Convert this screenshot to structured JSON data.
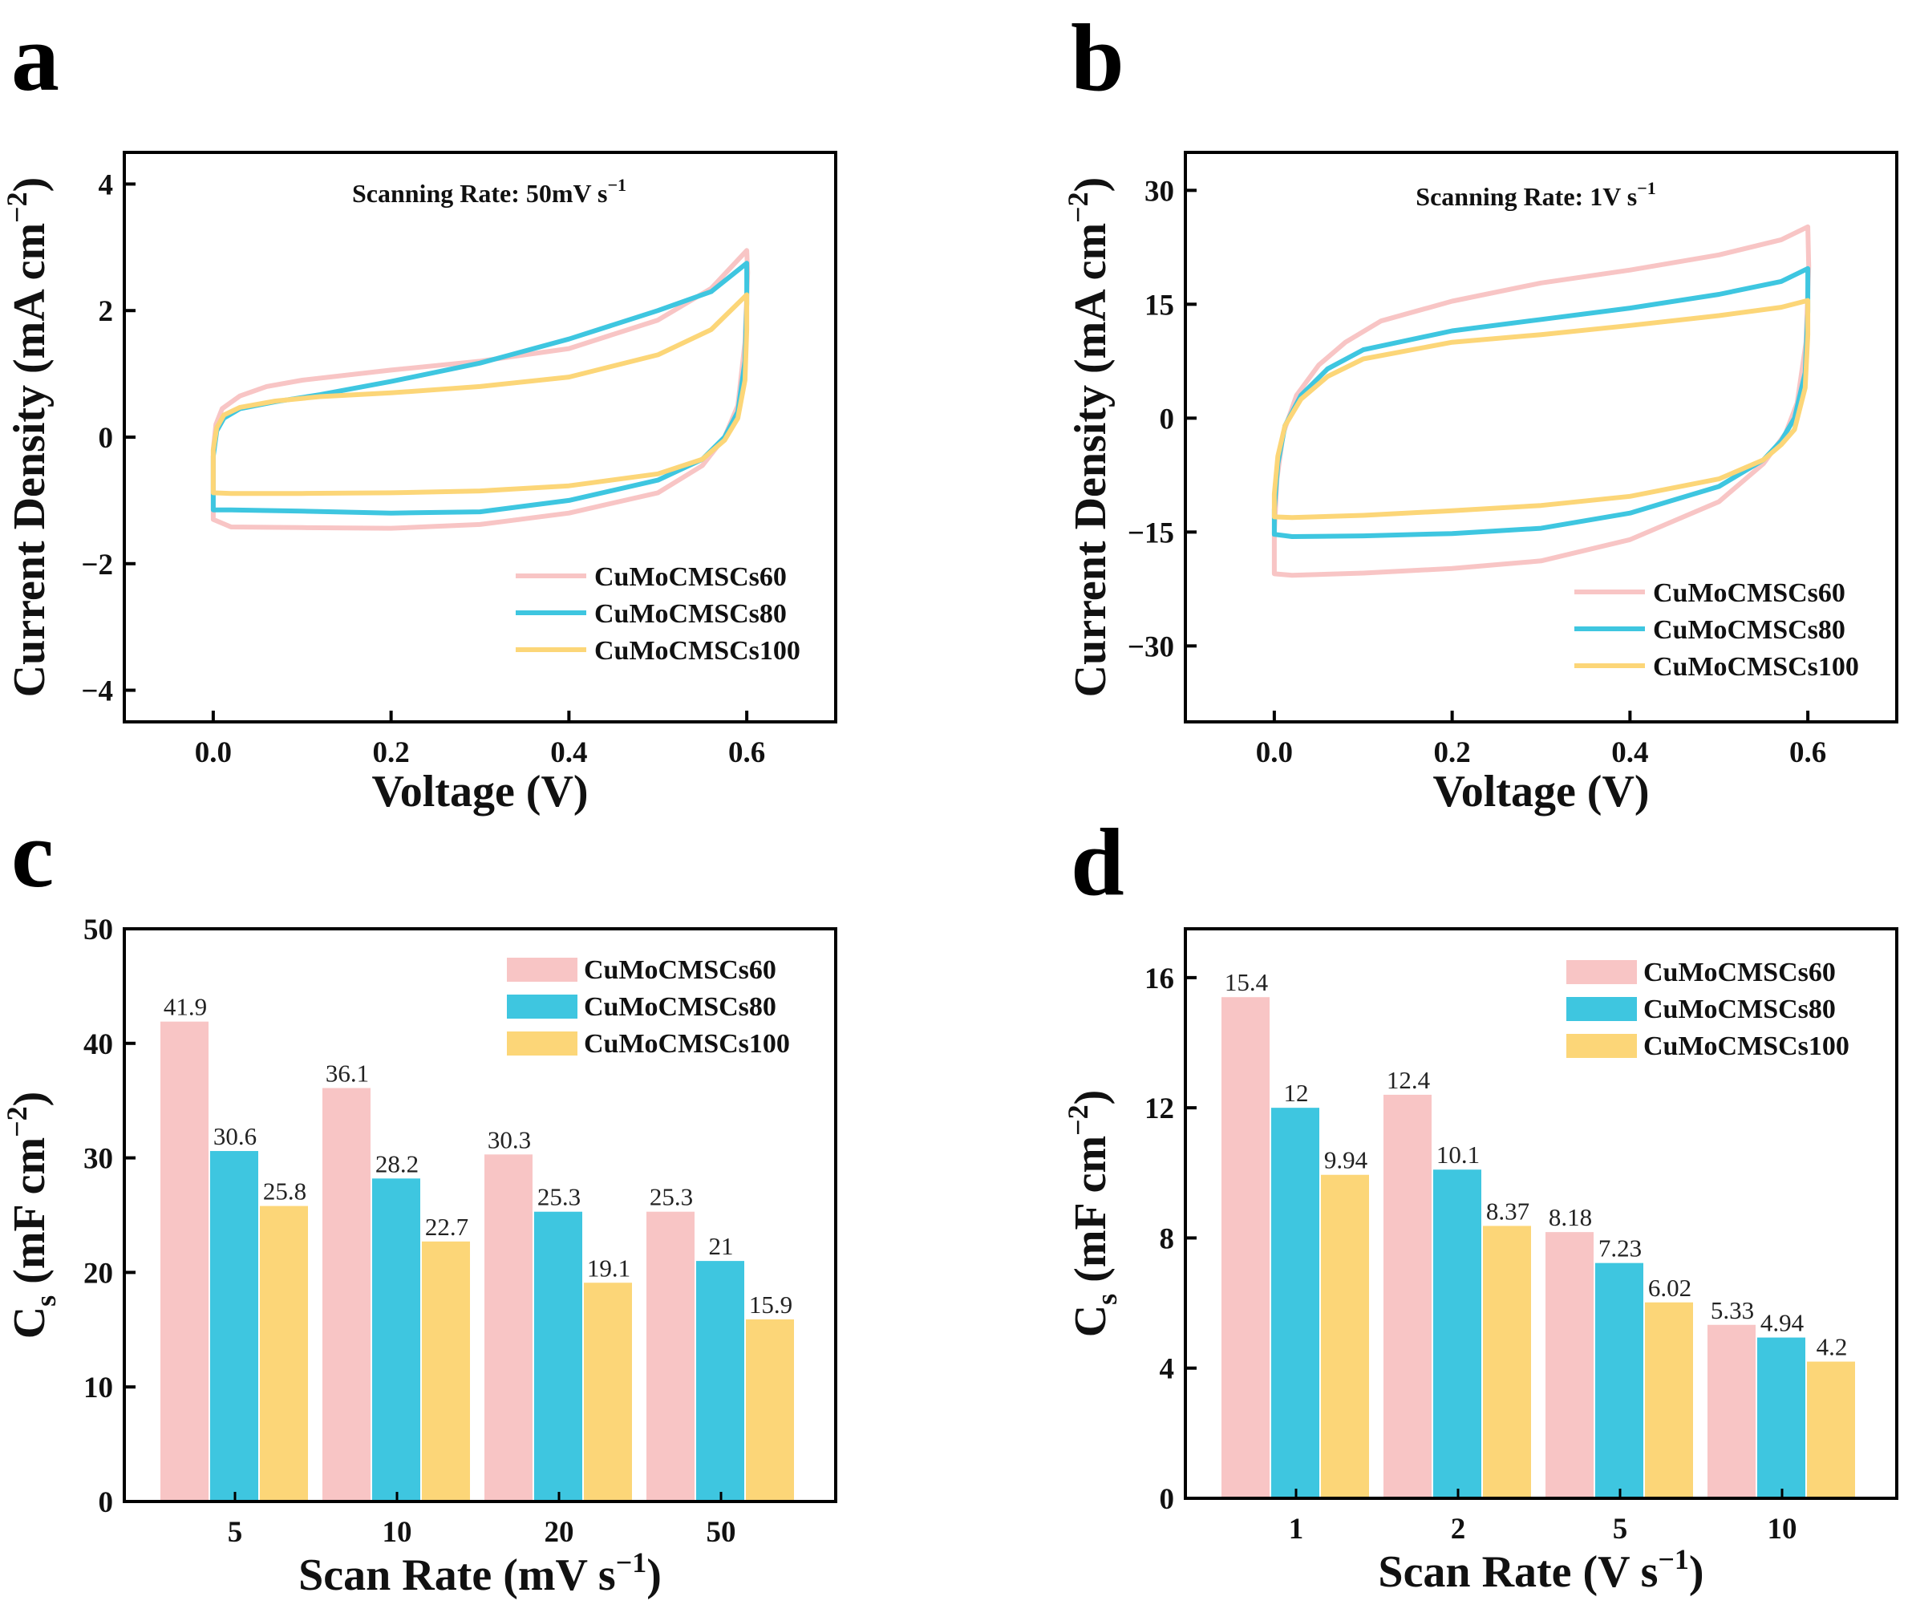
{
  "panels": {
    "a": "a",
    "b": "b",
    "c": "c",
    "d": "d"
  },
  "colors": {
    "s60": "#f8c5c5",
    "s80": "#3ec6e0",
    "s100": "#fcd678"
  },
  "chart_data": [
    {
      "id": "a",
      "type": "line",
      "title": "",
      "annotation": {
        "main": "Scanning Rate: 50mV s",
        "sup": "−1"
      },
      "xlabel": "Voltage (V)",
      "ylabel": "Current Density (mA cm",
      "ylabel_sup": "−2",
      "ylabel_end": ")",
      "xlim": [
        -0.1,
        0.7
      ],
      "ylim": [
        -4.5,
        4.5
      ],
      "xticks": [
        0.0,
        0.2,
        0.4,
        0.6
      ],
      "xtick_labels": [
        "0.0",
        "0.2",
        "0.4",
        "0.6"
      ],
      "yticks": [
        -4,
        -2,
        0,
        2,
        4
      ],
      "ytick_labels": [
        "−4",
        "−2",
        "0",
        "2",
        "4"
      ],
      "legend": [
        "CuMoCMSCs60",
        "CuMoCMSCs80",
        "CuMoCMSCs100"
      ],
      "series": [
        {
          "name": "CuMoCMSCs60",
          "color_key": "s60",
          "points": [
            [
              0,
              -1.3
            ],
            [
              0,
              -0.2
            ],
            [
              0.003,
              0.2
            ],
            [
              0.01,
              0.45
            ],
            [
              0.03,
              0.65
            ],
            [
              0.06,
              0.8
            ],
            [
              0.1,
              0.9
            ],
            [
              0.2,
              1.06
            ],
            [
              0.3,
              1.2
            ],
            [
              0.4,
              1.4
            ],
            [
              0.5,
              1.85
            ],
            [
              0.56,
              2.35
            ],
            [
              0.6,
              2.95
            ],
            [
              0.601,
              2.6
            ],
            [
              0.598,
              1.5
            ],
            [
              0.59,
              0.5
            ],
            [
              0.575,
              0
            ],
            [
              0.55,
              -0.45
            ],
            [
              0.5,
              -0.88
            ],
            [
              0.4,
              -1.2
            ],
            [
              0.3,
              -1.38
            ],
            [
              0.2,
              -1.44
            ],
            [
              0.1,
              -1.43
            ],
            [
              0.02,
              -1.42
            ],
            [
              0,
              -1.3
            ]
          ]
        },
        {
          "name": "CuMoCMSCs80",
          "color_key": "s80",
          "points": [
            [
              0,
              -1.15
            ],
            [
              0,
              -0.3
            ],
            [
              0.004,
              0.1
            ],
            [
              0.012,
              0.3
            ],
            [
              0.03,
              0.45
            ],
            [
              0.07,
              0.56
            ],
            [
              0.12,
              0.67
            ],
            [
              0.2,
              0.88
            ],
            [
              0.3,
              1.17
            ],
            [
              0.4,
              1.55
            ],
            [
              0.5,
              2.0
            ],
            [
              0.56,
              2.3
            ],
            [
              0.6,
              2.75
            ],
            [
              0.6,
              2.1
            ],
            [
              0.598,
              1.2
            ],
            [
              0.59,
              0.4
            ],
            [
              0.575,
              0
            ],
            [
              0.55,
              -0.35
            ],
            [
              0.5,
              -0.68
            ],
            [
              0.4,
              -1.0
            ],
            [
              0.3,
              -1.18
            ],
            [
              0.2,
              -1.2
            ],
            [
              0.1,
              -1.17
            ],
            [
              0.02,
              -1.15
            ],
            [
              0,
              -1.15
            ]
          ]
        },
        {
          "name": "CuMoCMSCs100",
          "color_key": "s100",
          "points": [
            [
              0,
              -0.88
            ],
            [
              0,
              -0.2
            ],
            [
              0.004,
              0.15
            ],
            [
              0.012,
              0.35
            ],
            [
              0.03,
              0.47
            ],
            [
              0.07,
              0.57
            ],
            [
              0.12,
              0.64
            ],
            [
              0.2,
              0.7
            ],
            [
              0.3,
              0.8
            ],
            [
              0.4,
              0.95
            ],
            [
              0.5,
              1.3
            ],
            [
              0.56,
              1.7
            ],
            [
              0.6,
              2.25
            ],
            [
              0.6,
              1.7
            ],
            [
              0.598,
              0.9
            ],
            [
              0.59,
              0.3
            ],
            [
              0.575,
              -0.05
            ],
            [
              0.55,
              -0.35
            ],
            [
              0.5,
              -0.58
            ],
            [
              0.4,
              -0.77
            ],
            [
              0.3,
              -0.85
            ],
            [
              0.2,
              -0.88
            ],
            [
              0.1,
              -0.89
            ],
            [
              0.02,
              -0.89
            ],
            [
              0,
              -0.88
            ]
          ]
        }
      ]
    },
    {
      "id": "b",
      "type": "line",
      "title": "",
      "annotation": {
        "main": "Scanning Rate: 1V s",
        "sup": "−1"
      },
      "xlabel": "Voltage (V)",
      "ylabel": "Current Density (mA cm",
      "ylabel_sup": "−2",
      "ylabel_end": ")",
      "xlim": [
        -0.1,
        0.7
      ],
      "ylim": [
        -40,
        35
      ],
      "xticks": [
        0.0,
        0.2,
        0.4,
        0.6
      ],
      "xtick_labels": [
        "0.0",
        "0.2",
        "0.4",
        "0.6"
      ],
      "yticks": [
        -30,
        -15,
        0,
        15,
        30
      ],
      "ytick_labels": [
        "−30",
        "−15",
        "0",
        "15",
        "30"
      ],
      "legend": [
        "CuMoCMSCs60",
        "CuMoCMSCs80",
        "CuMoCMSCs100"
      ],
      "series": [
        {
          "name": "CuMoCMSCs60",
          "color_key": "s60",
          "points": [
            [
              0,
              -20.5
            ],
            [
              0,
              -15
            ],
            [
              0.003,
              -8
            ],
            [
              0.01,
              -2
            ],
            [
              0.025,
              3
            ],
            [
              0.05,
              7
            ],
            [
              0.08,
              10
            ],
            [
              0.12,
              12.8
            ],
            [
              0.2,
              15.4
            ],
            [
              0.3,
              17.8
            ],
            [
              0.4,
              19.5
            ],
            [
              0.5,
              21.5
            ],
            [
              0.57,
              23.5
            ],
            [
              0.6,
              25.2
            ],
            [
              0.601,
              20
            ],
            [
              0.598,
              10
            ],
            [
              0.588,
              2
            ],
            [
              0.575,
              -2
            ],
            [
              0.55,
              -6
            ],
            [
              0.5,
              -11
            ],
            [
              0.4,
              -16
            ],
            [
              0.3,
              -18.8
            ],
            [
              0.2,
              -19.8
            ],
            [
              0.1,
              -20.4
            ],
            [
              0.02,
              -20.7
            ],
            [
              0,
              -20.5
            ]
          ]
        },
        {
          "name": "CuMoCMSCs80",
          "color_key": "s80",
          "points": [
            [
              0,
              -15.3
            ],
            [
              0,
              -12
            ],
            [
              0.004,
              -6
            ],
            [
              0.012,
              -1
            ],
            [
              0.03,
              3
            ],
            [
              0.06,
              6.5
            ],
            [
              0.1,
              9
            ],
            [
              0.2,
              11.5
            ],
            [
              0.3,
              13
            ],
            [
              0.4,
              14.5
            ],
            [
              0.5,
              16.3
            ],
            [
              0.57,
              18
            ],
            [
              0.6,
              19.7
            ],
            [
              0.6,
              14
            ],
            [
              0.597,
              6
            ],
            [
              0.585,
              0
            ],
            [
              0.57,
              -3
            ],
            [
              0.55,
              -5.5
            ],
            [
              0.5,
              -9
            ],
            [
              0.4,
              -12.5
            ],
            [
              0.3,
              -14.5
            ],
            [
              0.2,
              -15.2
            ],
            [
              0.1,
              -15.5
            ],
            [
              0.02,
              -15.6
            ],
            [
              0,
              -15.3
            ]
          ]
        },
        {
          "name": "CuMoCMSCs100",
          "color_key": "s100",
          "points": [
            [
              0,
              -13
            ],
            [
              0,
              -10
            ],
            [
              0.004,
              -5
            ],
            [
              0.012,
              -1
            ],
            [
              0.03,
              2.5
            ],
            [
              0.06,
              5.5
            ],
            [
              0.1,
              7.8
            ],
            [
              0.2,
              10
            ],
            [
              0.3,
              11
            ],
            [
              0.4,
              12.2
            ],
            [
              0.5,
              13.5
            ],
            [
              0.57,
              14.6
            ],
            [
              0.6,
              15.5
            ],
            [
              0.6,
              11
            ],
            [
              0.597,
              4
            ],
            [
              0.585,
              -1.5
            ],
            [
              0.57,
              -3.5
            ],
            [
              0.55,
              -5.5
            ],
            [
              0.5,
              -8
            ],
            [
              0.4,
              -10.3
            ],
            [
              0.3,
              -11.5
            ],
            [
              0.2,
              -12.2
            ],
            [
              0.1,
              -12.8
            ],
            [
              0.02,
              -13.1
            ],
            [
              0,
              -13
            ]
          ]
        }
      ]
    },
    {
      "id": "c",
      "type": "bar",
      "title": "",
      "xlabel": "Scan Rate (mV s",
      "xlabel_sup": "−1",
      "xlabel_end": ")",
      "ylabel": "C",
      "ylabel_sub": "s",
      "ylabel_mid": " (mF cm",
      "ylabel_sup": "−2",
      "ylabel_end": ")",
      "ylim": [
        0,
        50
      ],
      "yticks": [
        0,
        10,
        20,
        30,
        40,
        50
      ],
      "ytick_labels": [
        "0",
        "10",
        "20",
        "30",
        "40",
        "50"
      ],
      "categories": [
        "5",
        "10",
        "20",
        "50"
      ],
      "legend": [
        "CuMoCMSCs60",
        "CuMoCMSCs80",
        "CuMoCMSCs100"
      ],
      "series": [
        {
          "name": "CuMoCMSCs60",
          "color_key": "s60",
          "values": [
            41.9,
            36.1,
            30.3,
            25.3
          ],
          "labels": [
            "41.9",
            "36.1",
            "30.3",
            "25.3"
          ]
        },
        {
          "name": "CuMoCMSCs80",
          "color_key": "s80",
          "values": [
            30.6,
            28.2,
            25.3,
            21
          ],
          "labels": [
            "30.6",
            "28.2",
            "25.3",
            "21"
          ]
        },
        {
          "name": "CuMoCMSCs100",
          "color_key": "s100",
          "values": [
            25.8,
            22.7,
            19.1,
            15.9
          ],
          "labels": [
            "25.8",
            "22.7",
            "19.1",
            "15.9"
          ]
        }
      ]
    },
    {
      "id": "d",
      "type": "bar",
      "title": "",
      "xlabel": "Scan Rate (V s",
      "xlabel_sup": "−1",
      "xlabel_end": ")",
      "ylabel": "C",
      "ylabel_sub": "s",
      "ylabel_mid": " (mF cm",
      "ylabel_sup": "−2",
      "ylabel_end": ")",
      "ylim": [
        0,
        17.5
      ],
      "yticks": [
        0,
        4,
        8,
        12,
        16
      ],
      "ytick_labels": [
        "0",
        "4",
        "8",
        "12",
        "16"
      ],
      "categories": [
        "1",
        "2",
        "5",
        "10"
      ],
      "legend": [
        "CuMoCMSCs60",
        "CuMoCMSCs80",
        "CuMoCMSCs100"
      ],
      "series": [
        {
          "name": "CuMoCMSCs60",
          "color_key": "s60",
          "values": [
            15.4,
            12.4,
            8.18,
            5.33
          ],
          "labels": [
            "15.4",
            "12.4",
            "8.18",
            "5.33"
          ]
        },
        {
          "name": "CuMoCMSCs80",
          "color_key": "s80",
          "values": [
            12,
            10.1,
            7.23,
            4.94
          ],
          "labels": [
            "12",
            "10.1",
            "7.23",
            "4.94"
          ]
        },
        {
          "name": "CuMoCMSCs100",
          "color_key": "s100",
          "values": [
            9.94,
            8.37,
            6.02,
            4.2
          ],
          "labels": [
            "9.94",
            "8.37",
            "6.02",
            "4.2"
          ]
        }
      ]
    }
  ]
}
